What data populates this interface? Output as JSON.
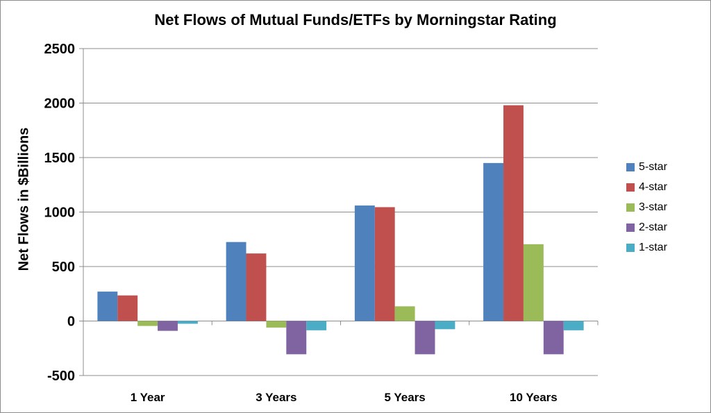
{
  "chart_data": {
    "type": "bar",
    "title": "Net Flows of Mutual Funds/ETFs by Morningstar Rating",
    "xlabel": "",
    "ylabel": "Net Flows in $Billions",
    "ylim": [
      -500,
      2500
    ],
    "yticks": [
      "2500",
      "2000",
      "1500",
      "1000",
      "500",
      "0",
      "-500"
    ],
    "categories": [
      "1 Year",
      "3 Years",
      "5 Years",
      "10 Years"
    ],
    "series": [
      {
        "name": "5-star",
        "color": "#4f81bd",
        "values": [
          270,
          725,
          1060,
          1450
        ]
      },
      {
        "name": "4-star",
        "color": "#c0504d",
        "values": [
          235,
          620,
          1045,
          1980
        ]
      },
      {
        "name": "3-star",
        "color": "#9bbb59",
        "values": [
          -45,
          -60,
          135,
          705
        ]
      },
      {
        "name": "2-star",
        "color": "#8064a2",
        "values": [
          -90,
          -305,
          -305,
          -305
        ]
      },
      {
        "name": "1-star",
        "color": "#4bacc6",
        "values": [
          -25,
          -85,
          -75,
          -85
        ]
      }
    ],
    "grid": true,
    "legend_position": "right"
  }
}
